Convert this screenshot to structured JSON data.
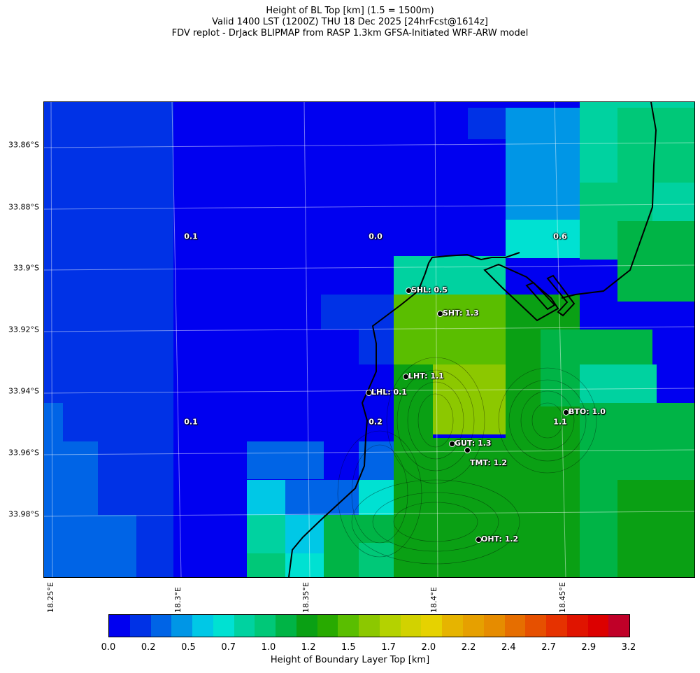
{
  "title": {
    "line1": "Height of BL Top [km] (1.5 = 1500m)",
    "line2": "Valid 1400 LST (1200Z) THU 18 Dec 2025 [24hrFcst@1614z]",
    "line3": "FDV replot - DrJack BLIPMAP from RASP 1.3km GFSA-Initiated WRF-ARW model"
  },
  "axes": {
    "lat_labels": [
      "33.86°S",
      "33.88°S",
      "33.9°S",
      "33.92°S",
      "33.94°S",
      "33.96°S",
      "33.98°S"
    ],
    "lon_labels": [
      "18.25°E",
      "18.3°E",
      "18.35°E",
      "18.4°E",
      "18.45°E"
    ]
  },
  "grid_values": [
    "0.1",
    "0.0",
    "0.6",
    "0.1",
    "0.2",
    "1.1"
  ],
  "stations": [
    {
      "name": "SHL",
      "label": "SHL: 0.5"
    },
    {
      "name": "SHT",
      "label": "SHT: 1.3"
    },
    {
      "name": "LHT",
      "label": "LHT: 1.1"
    },
    {
      "name": "LHL",
      "label": "LHL: 0.1"
    },
    {
      "name": "BTO",
      "label": "BTO: 1.0"
    },
    {
      "name": "GUT",
      "label": "GUT: 1.3"
    },
    {
      "name": "TMT",
      "label": "TMT: 1.2"
    },
    {
      "name": "OHT",
      "label": "OHT: 1.2"
    }
  ],
  "colorbar": {
    "label": "Height of Boundary Layer Top [km]",
    "ticks": [
      "0.0",
      "0.2",
      "0.5",
      "0.7",
      "1.0",
      "1.2",
      "1.5",
      "1.7",
      "2.0",
      "2.2",
      "2.4",
      "2.7",
      "2.9",
      "3.2"
    ],
    "colors": [
      "#0000f0",
      "#0032e6",
      "#0064e6",
      "#0096e6",
      "#00c8e6",
      "#00e1d2",
      "#00d2a0",
      "#00c878",
      "#00b446",
      "#0aa014",
      "#28aa00",
      "#5abe00",
      "#8cc800",
      "#b4d200",
      "#d2d200",
      "#e6d200",
      "#e6b400",
      "#e6a000",
      "#e68c00",
      "#e66e00",
      "#e65000",
      "#e63200",
      "#e01400",
      "#dc0000",
      "#c00028"
    ]
  }
}
